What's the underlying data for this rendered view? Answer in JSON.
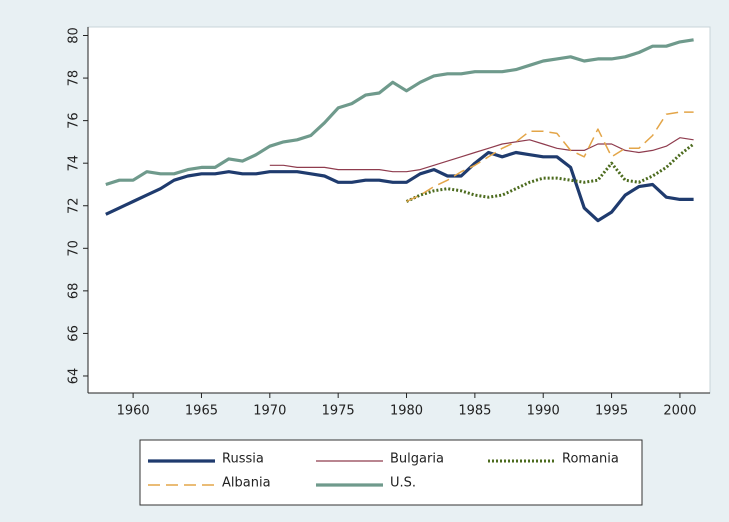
{
  "chart_data": {
    "type": "line",
    "x": [
      1958,
      1959,
      1960,
      1961,
      1962,
      1963,
      1964,
      1965,
      1966,
      1967,
      1968,
      1969,
      1970,
      1971,
      1972,
      1973,
      1974,
      1975,
      1976,
      1977,
      1978,
      1979,
      1980,
      1981,
      1982,
      1983,
      1984,
      1985,
      1986,
      1987,
      1988,
      1989,
      1990,
      1991,
      1992,
      1993,
      1994,
      1995,
      1996,
      1997,
      1998,
      1999,
      2000,
      2001
    ],
    "series": [
      {
        "name": "Russia",
        "color": "#1f3b6e",
        "style": "solid-thick",
        "values": [
          71.6,
          71.9,
          72.2,
          72.5,
          72.8,
          73.2,
          73.4,
          73.5,
          73.5,
          73.6,
          73.5,
          73.5,
          73.6,
          73.6,
          73.6,
          73.5,
          73.4,
          73.1,
          73.1,
          73.2,
          73.2,
          73.1,
          73.1,
          73.5,
          73.7,
          73.4,
          73.4,
          74.0,
          74.5,
          74.3,
          74.5,
          74.4,
          74.3,
          74.3,
          73.8,
          71.9,
          71.3,
          71.7,
          72.5,
          72.9,
          73.0,
          72.4,
          72.3,
          72.3
        ]
      },
      {
        "name": "Bulgaria",
        "color": "#8f3c4e",
        "style": "solid-thin",
        "values": [
          null,
          null,
          null,
          null,
          null,
          null,
          null,
          null,
          null,
          null,
          null,
          null,
          73.9,
          73.9,
          73.8,
          73.8,
          73.8,
          73.7,
          73.7,
          73.7,
          73.7,
          73.6,
          73.6,
          73.7,
          73.9,
          74.1,
          74.3,
          74.5,
          74.7,
          74.9,
          75.0,
          75.1,
          74.9,
          74.7,
          74.6,
          74.6,
          74.9,
          74.9,
          74.6,
          74.5,
          74.6,
          74.8,
          75.2,
          75.1
        ]
      },
      {
        "name": "Romania",
        "color": "#4c6b1e",
        "style": "dotted",
        "values": [
          null,
          null,
          null,
          null,
          null,
          null,
          null,
          null,
          null,
          null,
          null,
          null,
          null,
          null,
          null,
          null,
          null,
          null,
          null,
          null,
          null,
          null,
          72.2,
          72.5,
          72.7,
          72.8,
          72.7,
          72.5,
          72.4,
          72.5,
          72.8,
          73.1,
          73.3,
          73.3,
          73.2,
          73.1,
          73.2,
          74.0,
          73.2,
          73.1,
          73.4,
          73.8,
          74.4,
          74.9
        ]
      },
      {
        "name": "Albania",
        "color": "#e3a548",
        "style": "dashed",
        "values": [
          null,
          null,
          null,
          null,
          null,
          null,
          null,
          null,
          null,
          null,
          null,
          null,
          null,
          null,
          null,
          null,
          null,
          null,
          null,
          null,
          null,
          null,
          72.2,
          72.5,
          72.9,
          73.2,
          73.6,
          73.9,
          74.3,
          74.7,
          75.0,
          75.5,
          75.5,
          75.4,
          74.6,
          74.3,
          75.6,
          74.3,
          74.7,
          74.7,
          75.3,
          76.3,
          76.4,
          76.4
        ]
      },
      {
        "name": "U.S.",
        "color": "#6f9a8c",
        "style": "solid-thick",
        "values": [
          73.0,
          73.2,
          73.2,
          73.6,
          73.5,
          73.5,
          73.7,
          73.8,
          73.8,
          74.2,
          74.1,
          74.4,
          74.8,
          75.0,
          75.1,
          75.3,
          75.9,
          76.6,
          76.8,
          77.2,
          77.3,
          77.8,
          77.4,
          77.8,
          78.1,
          78.2,
          78.2,
          78.3,
          78.3,
          78.3,
          78.4,
          78.6,
          78.8,
          78.9,
          79.0,
          78.8,
          78.9,
          78.9,
          79.0,
          79.2,
          79.5,
          79.5,
          79.7,
          79.8
        ]
      }
    ],
    "xlim": [
      1956.7,
      2002.2
    ],
    "xticks": [
      1960,
      1965,
      1970,
      1975,
      1980,
      1985,
      1990,
      1995,
      2000
    ],
    "ylim": [
      63.2,
      80.4
    ],
    "yticks": [
      64,
      66,
      68,
      70,
      72,
      74,
      76,
      78,
      80
    ],
    "legend": "bottom"
  }
}
